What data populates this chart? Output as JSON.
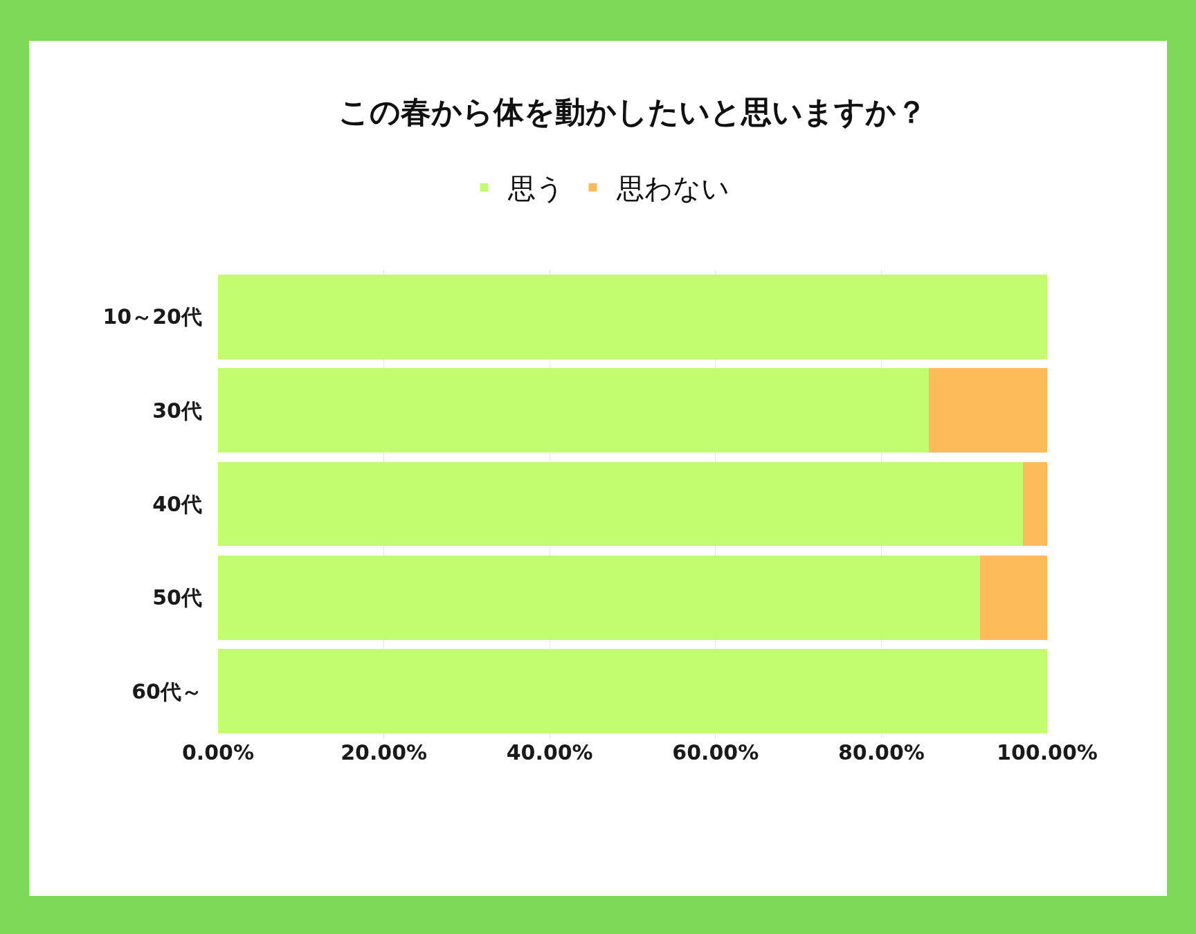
{
  "chart_data": {
    "type": "bar",
    "orientation": "horizontal",
    "stacked": true,
    "title": "この春から体を動かしたいと思いますか？",
    "categories": [
      "10～20代",
      "30代",
      "40代",
      "50代",
      "60代～"
    ],
    "series": [
      {
        "name": "思う",
        "color": "#c2fd70",
        "values": [
          100,
          85.7,
          97.1,
          91.9,
          100
        ]
      },
      {
        "name": "思わない",
        "color": "#fdbb5a",
        "values": [
          0,
          14.3,
          2.9,
          8.1,
          0
        ]
      }
    ],
    "xlim": [
      0,
      100
    ],
    "xticks": [
      {
        "value": 0,
        "label": "0.00%"
      },
      {
        "value": 20,
        "label": "20.00%"
      },
      {
        "value": 40,
        "label": "40.00%"
      },
      {
        "value": 60,
        "label": "60.00%"
      },
      {
        "value": 80,
        "label": "80.00%"
      },
      {
        "value": 100,
        "label": "100.00%"
      }
    ],
    "grid": "x",
    "legend": "top"
  }
}
